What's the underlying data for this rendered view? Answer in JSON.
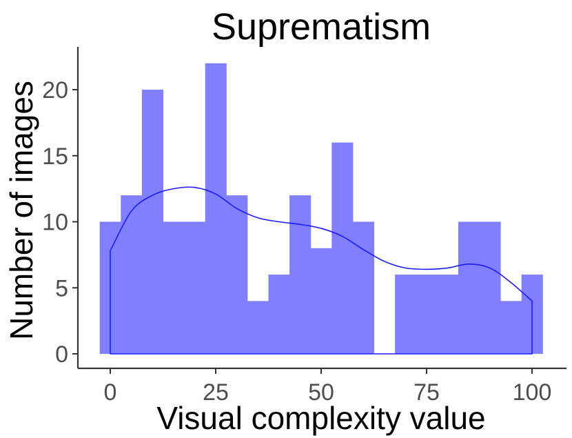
{
  "chart_data": {
    "type": "bar",
    "title": "Suprematism",
    "xlabel": "Visual complexity value",
    "ylabel": "Number of images",
    "xlim": [
      -3,
      103
    ],
    "ylim": [
      0,
      22
    ],
    "x_ticks": [
      0,
      25,
      50,
      75,
      100
    ],
    "y_ticks": [
      0,
      5,
      10,
      15,
      20
    ],
    "grid": false,
    "legend": "none",
    "bin_width": 5,
    "bin_centers": [
      0,
      5,
      10,
      15,
      20,
      25,
      30,
      35,
      40,
      45,
      50,
      55,
      60,
      65,
      70,
      75,
      80,
      85,
      90,
      95,
      100
    ],
    "values": [
      10,
      12,
      20,
      10,
      10,
      22,
      12,
      4,
      6,
      12,
      8,
      16,
      10,
      0,
      6,
      6,
      6,
      10,
      10,
      4,
      6
    ],
    "density_curve": {
      "x": [
        0,
        5,
        10,
        15,
        20,
        25,
        30,
        35,
        40,
        45,
        50,
        55,
        60,
        65,
        70,
        75,
        80,
        85,
        90,
        95,
        100
      ],
      "y": [
        7.8,
        10.8,
        12.0,
        12.5,
        12.6,
        12.1,
        11.0,
        10.3,
        10.0,
        9.8,
        9.5,
        8.9,
        7.9,
        7.0,
        6.5,
        6.4,
        6.5,
        6.8,
        6.5,
        5.4,
        4.0
      ]
    },
    "colors": {
      "bars": "#8080ff",
      "curve": "#1a1aff",
      "axis": "#333333"
    }
  }
}
